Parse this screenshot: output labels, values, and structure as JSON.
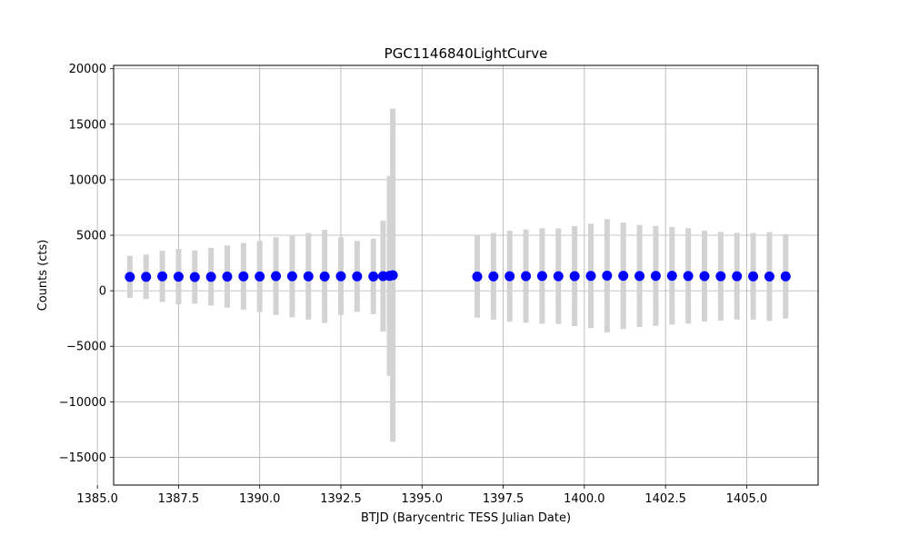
{
  "chart_data": {
    "type": "scatter",
    "title": "PGC1146840LightCurve",
    "xlabel": "BTJD (Barycentric TESS Julian Date)",
    "ylabel": "Counts (cts)",
    "xlim": [
      1385.5,
      1407.2
    ],
    "ylim": [
      -17500,
      20300
    ],
    "xticks": [
      1385.0,
      1387.5,
      1390.0,
      1392.5,
      1395.0,
      1397.5,
      1400.0,
      1402.5,
      1405.0
    ],
    "xtick_labels": [
      "1385.0",
      "1387.5",
      "1390.0",
      "1392.5",
      "1395.0",
      "1397.5",
      "1400.0",
      "1402.5",
      "1405.0"
    ],
    "yticks": [
      -15000,
      -10000,
      -5000,
      0,
      5000,
      10000,
      15000,
      20000
    ],
    "ytick_labels": [
      "−15000",
      "−10000",
      "−5000",
      "0",
      "5000",
      "10000",
      "15000",
      "20000"
    ],
    "grid": true,
    "colors": {
      "points": "#0000ff",
      "errorbars": "#d3d3d3",
      "grid": "#b0b0b0"
    },
    "series": [
      {
        "segment": 1,
        "x": [
          1386.0,
          1386.5,
          1387.0,
          1387.5,
          1388.0,
          1388.5,
          1389.0,
          1389.5,
          1390.0,
          1390.5,
          1391.0,
          1391.5,
          1392.0,
          1392.5,
          1393.0,
          1393.5,
          1393.8,
          1394.0,
          1394.1
        ],
        "y": [
          1250,
          1260,
          1300,
          1270,
          1240,
          1260,
          1280,
          1300,
          1290,
          1320,
          1310,
          1300,
          1290,
          1310,
          1300,
          1290,
          1320,
          1340,
          1400
        ],
        "yerr": [
          1900,
          2000,
          2300,
          2500,
          2400,
          2600,
          2800,
          3000,
          3200,
          3500,
          3700,
          3900,
          4200,
          3500,
          3200,
          3400,
          5000,
          9000,
          15000
        ]
      },
      {
        "segment": 2,
        "x": [
          1396.7,
          1397.2,
          1397.7,
          1398.2,
          1398.7,
          1399.2,
          1399.7,
          1400.2,
          1400.7,
          1401.2,
          1401.7,
          1402.2,
          1402.7,
          1403.2,
          1403.7,
          1404.2,
          1404.7,
          1405.2,
          1405.7,
          1406.2
        ],
        "y": [
          1280,
          1300,
          1310,
          1320,
          1330,
          1310,
          1320,
          1340,
          1360,
          1350,
          1330,
          1340,
          1350,
          1330,
          1320,
          1310,
          1310,
          1300,
          1290,
          1300
        ],
        "yerr": [
          3700,
          3900,
          4100,
          4200,
          4300,
          4300,
          4500,
          4700,
          5100,
          4800,
          4600,
          4500,
          4400,
          4300,
          4100,
          4000,
          3900,
          3900,
          4000,
          3800
        ]
      }
    ]
  }
}
